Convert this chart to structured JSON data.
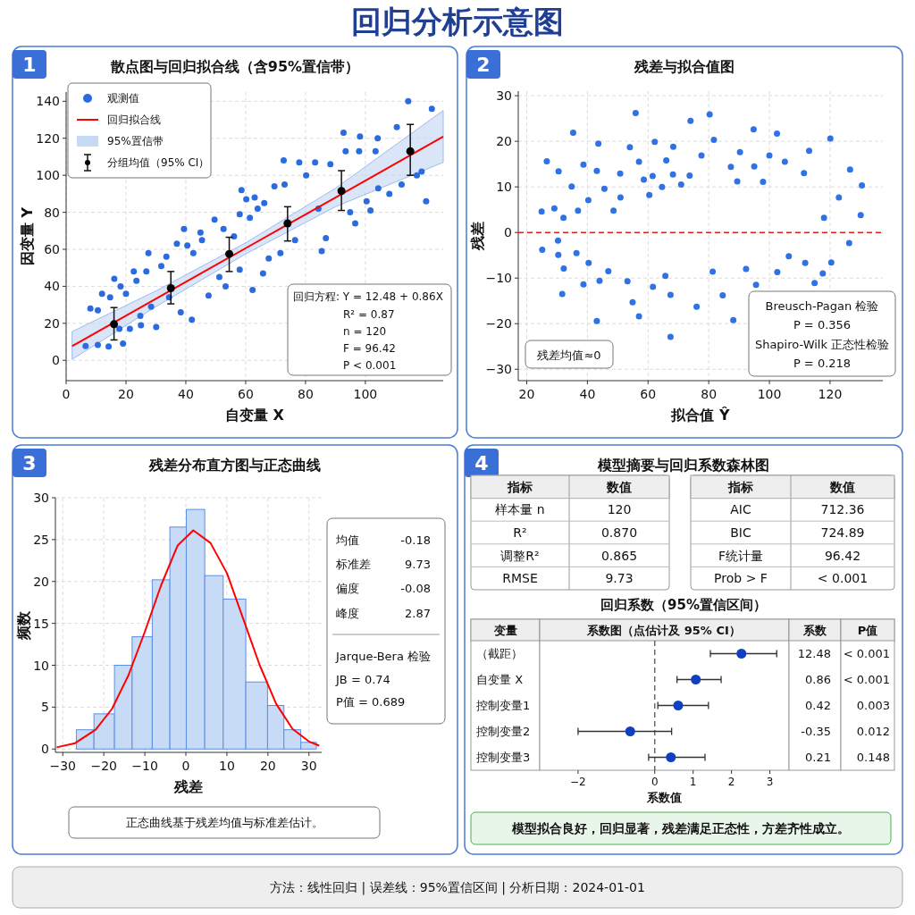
{
  "chart_data": [
    {
      "type": "other",
      "title": "回归分析示意图",
      "annotations": [
        "方法：线性回归   |   误差线：95%置信区间   |   分析日期：2024-01-01"
      ]
    },
    {
      "type": "scatter",
      "title": "散点图与回归拟合线（含95%置信带）",
      "xlabel": "自变量 X",
      "ylabel": "因变量 Y",
      "xlim": [
        0,
        126
      ],
      "ylim": [
        -11,
        145
      ],
      "xticks": [
        0,
        20,
        40,
        60,
        80,
        100
      ],
      "yticks": [
        0,
        20,
        40,
        60,
        80,
        100,
        120,
        140
      ],
      "grid": true,
      "legend": "top left",
      "annotations": [
        "1",
        "回归方程: Y = 12.48 + 0.86X",
        "R² = 0.87",
        "n = 120",
        "F = 96.42",
        "P < 0.001",
        "95%置信带"
      ],
      "series": [
        {
          "type": "scatter",
          "name": "观测值",
          "color": "#2b6be0",
          "marker": "circle",
          "x": [
            6.5,
            8.1,
            10.6,
            10.6,
            12,
            14.2,
            16.1,
            14.7,
            18.2,
            17.8,
            19,
            20,
            21.3,
            22.6,
            23.5,
            24.8,
            25,
            26.8,
            27.5,
            28.4,
            30.1,
            31.8,
            33.5,
            34.4,
            37,
            38.3,
            39.4,
            40.5,
            42,
            42.5,
            44.9,
            45.4,
            47.6,
            49.6,
            51.2,
            52.6,
            53.3,
            56.1,
            58,
            58.6,
            58,
            60.2,
            61.4,
            62.3,
            63,
            64,
            65.8,
            66.2,
            67.7,
            69.6,
            71.6,
            72.7,
            73,
            76.5,
            77.9,
            80.2,
            83.2,
            84.3,
            85.4,
            86.8,
            88.3,
            92.7,
            93.4,
            94.9,
            96.6,
            98.2,
            97.9,
            100.4,
            101.7,
            103.4,
            104.1,
            104.3,
            108,
            110.5,
            112.1,
            114.3,
            117.2,
            118.8,
            120.3,
            122.2
          ],
          "values": [
            7.7,
            28,
            27,
            8.3,
            36,
            7.5,
            44,
            34,
            40,
            17,
            9,
            36,
            17,
            48,
            43,
            24,
            19,
            48,
            58,
            29,
            18,
            51,
            56,
            34,
            63,
            26,
            71,
            62,
            22,
            58,
            69,
            65,
            35,
            76,
            45,
            71,
            40,
            67,
            49,
            92,
            79,
            87,
            77,
            38,
            88,
            82,
            47,
            85,
            55,
            94,
            58,
            108,
            95,
            65,
            107,
            100,
            107,
            82,
            59,
            66,
            106,
            123,
            113,
            80,
            74,
            121,
            113,
            86,
            81,
            113,
            120,
            93,
            90,
            126,
            95,
            140,
            100,
            102,
            86,
            136
          ]
        },
        {
          "type": "line",
          "name": "回归拟合线",
          "color": "#ff0000",
          "x": [
            2,
            30,
            60,
            90,
            126
          ],
          "values": [
            7.6,
            33.2,
            60.6,
            88.0,
            120.9
          ],
          "lower": [
            0.5,
            29,
            57.5,
            83,
            107
          ],
          "upper": [
            15.5,
            37.5,
            63.5,
            93,
            135
          ]
        },
        {
          "type": "scatter",
          "name": "分组均值（95% CI）",
          "color": "#000000",
          "marker": "circle",
          "x": [
            16,
            35,
            54.5,
            74,
            92,
            115
          ],
          "values": [
            19.5,
            39,
            57.5,
            74,
            91.5,
            113
          ],
          "errors": [
            [
              11,
              28.5
            ],
            [
              30.5,
              48
            ],
            [
              48,
              66.5
            ],
            [
              64.5,
              83
            ],
            [
              81,
              102.5
            ],
            [
              100,
              127.5
            ]
          ]
        }
      ]
    },
    {
      "type": "scatter",
      "title": "残差与拟合值图",
      "xlabel": "拟合值 Ŷ",
      "ylabel": "残差",
      "xlim": [
        17.2,
        137.4
      ],
      "ylim": [
        -32.5,
        31
      ],
      "xticks": [
        20,
        40,
        60,
        80,
        100,
        120
      ],
      "yticks": [
        -30,
        -20,
        -10,
        0,
        10,
        20,
        30
      ],
      "grid": true,
      "marker": "circle",
      "annotations": [
        "2",
        "残差均值≈0",
        "Breusch-Pagan 检验",
        "P = 0.356",
        "Shapiro-Wilk 正态性检验",
        "P = 0.218"
      ],
      "ref_lines": [
        {
          "axis": "y",
          "value": 0,
          "color": "#e02020",
          "line_style": "dashed"
        }
      ],
      "series": [
        {
          "type": "scatter",
          "color": "#2f72e6",
          "x": [
            24.9,
            25.1,
            26.6,
            29.1,
            30.5,
            30.3,
            30.4,
            31.7,
            32.1,
            32.2,
            34.8,
            35.3,
            36.4,
            36.9,
            38.7,
            38.7,
            40.3,
            40.4,
            43.1,
            43.1,
            43.6,
            44,
            45.6,
            46.9,
            48.6,
            50.8,
            50.9,
            53.2,
            54,
            54.9,
            55.9,
            57,
            57,
            58.6,
            60.4,
            61.5,
            61.6,
            62.2,
            64.6,
            65.7,
            66,
            67.4,
            67.4,
            68.2,
            68.3,
            70.9,
            73.7,
            74,
            76,
            77.6,
            80.3,
            81.3,
            81.7,
            84.6,
            87.3,
            88.1,
            89.4,
            90.3,
            92.3,
            94.8,
            95,
            95.6,
            97.9,
            100,
            102.5,
            102.6,
            105.1,
            106.4,
            111.4,
            111.8,
            113.1,
            114.9,
            117.6,
            118,
            120.1,
            120.4,
            122.9,
            126.6,
            126.3,
            130.1,
            130.5
          ],
          "values": [
            4.6,
            -3.8,
            15.6,
            5.3,
            13.4,
            -1.8,
            -4.9,
            -13.5,
            3.2,
            -7.9,
            10.1,
            21.9,
            -4.5,
            4.8,
            14.9,
            -11.4,
            7.1,
            -6.7,
            13.5,
            -19.4,
            19.5,
            -10.6,
            9.6,
            -8.5,
            4.8,
            12.9,
            7.7,
            -10.7,
            18.7,
            -15.3,
            26.2,
            -18.4,
            15.5,
            11.6,
            8.2,
            12.4,
            -11.9,
            19.9,
            10,
            -9.5,
            15.8,
            -22.9,
            -13.7,
            12.7,
            18.8,
            10.5,
            12.5,
            24.5,
            -16.3,
            16.9,
            25.9,
            -8.6,
            20.3,
            -13.8,
            14.4,
            -19.2,
            11.2,
            17.6,
            -8,
            22.6,
            14.5,
            -11.5,
            11.1,
            16.9,
            21.7,
            -8.7,
            15.5,
            -5.2,
            13,
            -6.7,
            17.9,
            -11.1,
            -9,
            3.2,
            20.6,
            -6.6,
            7.7,
            13.8,
            -2.3,
            3.8,
            10.3
          ]
        }
      ]
    },
    {
      "type": "histogram",
      "title": "残差分布直方图与正态曲线",
      "xlabel": "残差",
      "ylabel": "频数",
      "xlim": [
        -31.8,
        33.1
      ],
      "ylim": [
        -0.4,
        30
      ],
      "xticks": [
        -30,
        -20,
        -10,
        0,
        10,
        20,
        30
      ],
      "yticks": [
        0,
        5,
        10,
        15,
        20,
        25,
        30
      ],
      "grid": true,
      "annotations": [
        "3",
        "均值",
        "-0.18",
        "标准差",
        "9.73",
        "偏度",
        "-0.08",
        "峰度",
        "2.87",
        "Jarque-Bera 检验",
        "JB = 0.74",
        "P值 = 0.689",
        "正态曲线基于残差均值与标准差估计。"
      ],
      "series": [
        {
          "type": "histogram",
          "color": "#c8dbf6",
          "bins": [
            -26.7,
            -22.4,
            -17.4,
            -13.1,
            -8.2,
            -3.9,
            0.1,
            4.6,
            9.1,
            14.6,
            19.9,
            23.9,
            28.0,
            31.8
          ],
          "values": [
            2.3,
            4.2,
            10.0,
            13.4,
            20.2,
            26.5,
            28.6,
            20.7,
            17.9,
            8.0,
            5.2,
            2.3,
            0.8
          ]
        },
        {
          "type": "line",
          "color": "#ff0000",
          "x": [
            -31.5,
            -27,
            -22,
            -18,
            -14,
            -10,
            -6,
            -2,
            1.8,
            6,
            10,
            14,
            18,
            22,
            26,
            30,
            32.5
          ],
          "values": [
            0.2,
            0.7,
            2.3,
            4.8,
            8.8,
            14.0,
            19.6,
            24.3,
            26.1,
            24.6,
            21.0,
            15.5,
            10.0,
            5.4,
            2.4,
            0.9,
            0.4
          ]
        }
      ]
    },
    {
      "type": "other",
      "title": "模型摘要与回归系数森林图",
      "annotations": [
        "4",
        "指标",
        "数值",
        "样本量 n",
        "120",
        "R²",
        "0.870",
        "调整R²",
        "0.865",
        "RMSE",
        "9.73",
        "指标",
        "数值",
        "AIC",
        "712.36",
        "BIC",
        "724.89",
        "F统计量",
        "96.42",
        "Prob > F",
        "< 0.001",
        "模型拟合良好，回归显著，残差满足正态性，方差齐性成立。"
      ]
    },
    {
      "type": "scatter",
      "title": "回归系数（95%置信区间）",
      "orientation": "horizontal",
      "xlabel": "系数值",
      "xlim": [
        -3,
        3.5
      ],
      "xticks": [
        -2,
        0,
        1,
        2,
        3
      ],
      "marker": "circle",
      "color": "#1040c0",
      "categories": [
        "（截距）",
        "自变量 X",
        "控制变量1",
        "控制变量2",
        "控制变量3"
      ],
      "values": [
        2.26,
        1.07,
        0.61,
        -0.64,
        0.42
      ],
      "errors": [
        [
          1.45,
          3.18
        ],
        [
          0.58,
          1.73
        ],
        [
          0.08,
          1.4
        ],
        [
          -2.0,
          0.44
        ],
        [
          -0.16,
          1.31
        ]
      ],
      "ref_lines": [
        {
          "axis": "x",
          "value": 0,
          "color": "#555555",
          "line_style": "dashed"
        }
      ],
      "annotations": [
        "变量",
        "系数图（点估计及 95% CI）",
        "系数",
        "P值",
        "12.48",
        "< 0.001",
        "0.86",
        "< 0.001",
        "0.42",
        "0.003",
        "-0.35",
        "0.012",
        "0.21",
        "0.148"
      ]
    }
  ]
}
